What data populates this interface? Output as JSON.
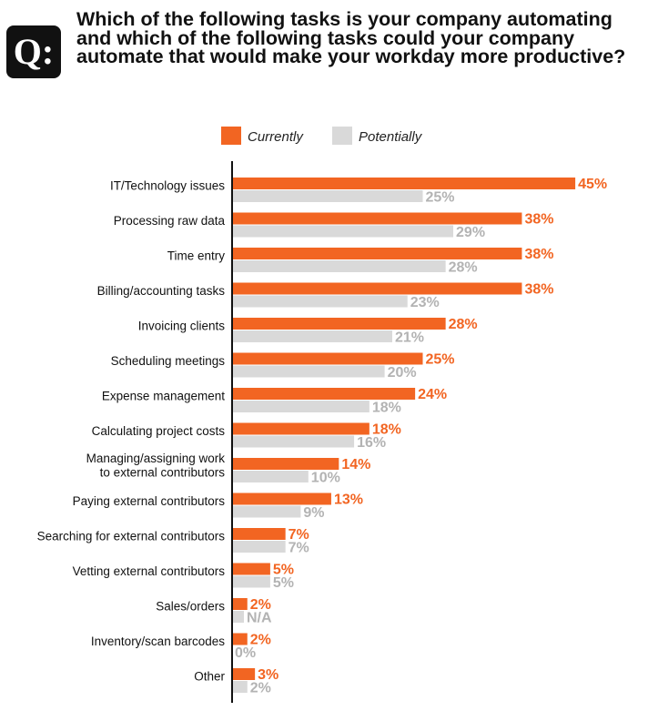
{
  "question": {
    "badge": "Q:",
    "text": "Which of the following tasks is your company automating and which of the following tasks could your company automate that would make your workday more productive?"
  },
  "colors": {
    "currently": "#f26522",
    "potentially": "#d9d9d9",
    "potentially_label": "#b3b3b3"
  },
  "chart_data": {
    "type": "bar",
    "orientation": "horizontal",
    "title": "",
    "xlabel": "",
    "ylabel": "",
    "xlim": [
      0,
      45
    ],
    "legend": {
      "position": "top",
      "entries": [
        "Currently",
        "Potentially"
      ]
    },
    "categories": [
      "IT/Technology issues",
      "Processing raw data",
      "Time entry",
      "Billing/accounting tasks",
      "Invoicing clients",
      "Scheduling meetings",
      "Expense management",
      "Calculating project costs",
      "Managing/assigning work to external contributors",
      "Paying external contributors",
      "Searching for external contributors",
      "Vetting external contributors",
      "Sales/orders",
      "Inventory/scan barcodes",
      "Other"
    ],
    "series": [
      {
        "name": "Currently",
        "values": [
          45,
          38,
          38,
          38,
          28,
          25,
          24,
          18,
          14,
          13,
          7,
          5,
          2,
          2,
          3
        ],
        "labels": [
          "45%",
          "38%",
          "38%",
          "38%",
          "28%",
          "25%",
          "24%",
          "18%",
          "14%",
          "13%",
          "7%",
          "5%",
          "2%",
          "2%",
          "3%"
        ]
      },
      {
        "name": "Potentially",
        "values": [
          25,
          29,
          28,
          23,
          21,
          20,
          18,
          16,
          10,
          9,
          7,
          5,
          null,
          0,
          2
        ],
        "labels": [
          "25%",
          "29%",
          "28%",
          "23%",
          "21%",
          "20%",
          "18%",
          "16%",
          "10%",
          "9%",
          "7%",
          "5%",
          "N/A",
          "0%",
          "2%"
        ]
      }
    ]
  }
}
